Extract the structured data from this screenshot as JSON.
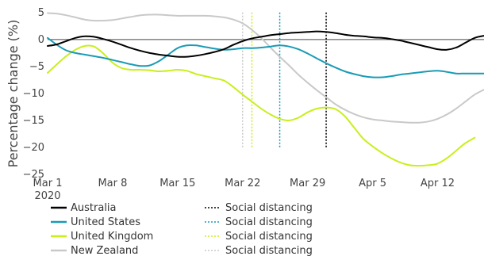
{
  "chart_data": {
    "type": "line",
    "ylabel": "Percentage change (%)",
    "ylim": [
      -25,
      6
    ],
    "xlim": [
      "2020-03-01",
      "2020-04-17"
    ],
    "x_ticks": [
      "Mar 1",
      "Mar 8",
      "Mar 15",
      "Mar 22",
      "Mar 29",
      "Apr 5",
      "Apr 12"
    ],
    "x_tick_dates": [
      "2020-03-01",
      "2020-03-08",
      "2020-03-15",
      "2020-03-22",
      "2020-03-29",
      "2020-04-05",
      "2020-04-12"
    ],
    "x_year_label": "2020",
    "y_ticks": [
      5,
      0,
      -5,
      -10,
      -15,
      -20,
      -25
    ],
    "y_tick_labels": [
      "5",
      "0",
      "−5",
      "−10",
      "−15",
      "−20",
      "−25"
    ],
    "zero_line": true,
    "legend_position": "bottom",
    "series": [
      {
        "name": "Australia",
        "color": "#000000",
        "x": [
          "2020-03-01",
          "2020-03-02",
          "2020-03-03",
          "2020-03-04",
          "2020-03-05",
          "2020-03-06",
          "2020-03-07",
          "2020-03-08",
          "2020-03-09",
          "2020-03-10",
          "2020-03-11",
          "2020-03-12",
          "2020-03-13",
          "2020-03-14",
          "2020-03-15",
          "2020-03-16",
          "2020-03-17",
          "2020-03-18",
          "2020-03-19",
          "2020-03-20",
          "2020-03-21",
          "2020-03-22",
          "2020-03-23",
          "2020-03-24",
          "2020-03-25",
          "2020-03-26",
          "2020-03-27",
          "2020-03-28",
          "2020-03-29",
          "2020-03-30",
          "2020-03-31",
          "2020-04-01",
          "2020-04-02",
          "2020-04-03",
          "2020-04-04",
          "2020-04-05",
          "2020-04-06",
          "2020-04-07",
          "2020-04-08",
          "2020-04-09",
          "2020-04-10",
          "2020-04-11",
          "2020-04-12",
          "2020-04-13",
          "2020-04-14",
          "2020-04-15",
          "2020-04-16",
          "2020-04-17"
        ],
        "values": [
          -1.2,
          -0.9,
          -0.3,
          0.3,
          0.6,
          0.5,
          0.1,
          -0.4,
          -1.0,
          -1.6,
          -2.1,
          -2.5,
          -2.8,
          -3.0,
          -3.2,
          -3.2,
          -3.0,
          -2.7,
          -2.3,
          -1.8,
          -1.0,
          -0.3,
          0.2,
          0.5,
          0.8,
          1.0,
          1.2,
          1.3,
          1.4,
          1.5,
          1.4,
          1.2,
          0.9,
          0.7,
          0.6,
          0.4,
          0.3,
          0.1,
          -0.2,
          -0.6,
          -1.0,
          -1.4,
          -1.8,
          -1.9,
          -1.5,
          -0.6,
          0.3,
          0.7
        ]
      },
      {
        "name": "United States",
        "color": "#1a9bb5",
        "x": [
          "2020-03-01",
          "2020-03-02",
          "2020-03-03",
          "2020-03-04",
          "2020-03-05",
          "2020-03-06",
          "2020-03-07",
          "2020-03-08",
          "2020-03-09",
          "2020-03-10",
          "2020-03-11",
          "2020-03-12",
          "2020-03-13",
          "2020-03-14",
          "2020-03-15",
          "2020-03-16",
          "2020-03-17",
          "2020-03-18",
          "2020-03-19",
          "2020-03-20",
          "2020-03-21",
          "2020-03-22",
          "2020-03-23",
          "2020-03-24",
          "2020-03-25",
          "2020-03-26",
          "2020-03-27",
          "2020-03-28",
          "2020-03-29",
          "2020-03-30",
          "2020-03-31",
          "2020-04-01",
          "2020-04-02",
          "2020-04-03",
          "2020-04-04",
          "2020-04-05",
          "2020-04-06",
          "2020-04-07",
          "2020-04-08",
          "2020-04-09",
          "2020-04-10",
          "2020-04-11",
          "2020-04-12",
          "2020-04-13",
          "2020-04-14",
          "2020-04-15",
          "2020-04-16",
          "2020-04-17"
        ],
        "values": [
          0.3,
          -1.0,
          -2.0,
          -2.5,
          -2.8,
          -3.1,
          -3.4,
          -3.8,
          -4.2,
          -4.6,
          -4.9,
          -4.8,
          -4.0,
          -2.8,
          -1.6,
          -1.1,
          -1.1,
          -1.4,
          -1.7,
          -1.9,
          -1.8,
          -1.6,
          -1.6,
          -1.5,
          -1.3,
          -1.1,
          -1.3,
          -1.8,
          -2.6,
          -3.5,
          -4.4,
          -5.2,
          -5.9,
          -6.4,
          -6.8,
          -7.0,
          -7.0,
          -6.8,
          -6.5,
          -6.3,
          -6.1,
          -5.9,
          -5.8,
          -6.0,
          -6.3,
          -6.3,
          -6.3,
          -6.3
        ]
      },
      {
        "name": "United Kingdom",
        "color": "#c8ef1c",
        "x": [
          "2020-03-01",
          "2020-03-02",
          "2020-03-03",
          "2020-03-04",
          "2020-03-05",
          "2020-03-06",
          "2020-03-07",
          "2020-03-08",
          "2020-03-09",
          "2020-03-10",
          "2020-03-11",
          "2020-03-12",
          "2020-03-13",
          "2020-03-14",
          "2020-03-15",
          "2020-03-16",
          "2020-03-17",
          "2020-03-18",
          "2020-03-19",
          "2020-03-20",
          "2020-03-21",
          "2020-03-22",
          "2020-03-23",
          "2020-03-24",
          "2020-03-25",
          "2020-03-26",
          "2020-03-27",
          "2020-03-28",
          "2020-03-29",
          "2020-03-30",
          "2020-03-31",
          "2020-04-01",
          "2020-04-02",
          "2020-04-03",
          "2020-04-04",
          "2020-04-05",
          "2020-04-06",
          "2020-04-07",
          "2020-04-08",
          "2020-04-09",
          "2020-04-10",
          "2020-04-11",
          "2020-04-12",
          "2020-04-13",
          "2020-04-14",
          "2020-04-15",
          "2020-04-16"
        ],
        "values": [
          -6.2,
          -4.6,
          -3.1,
          -1.9,
          -1.2,
          -1.3,
          -2.6,
          -4.3,
          -5.3,
          -5.6,
          -5.6,
          -5.7,
          -5.9,
          -5.8,
          -5.6,
          -5.8,
          -6.4,
          -6.8,
          -7.2,
          -7.6,
          -8.8,
          -10.2,
          -11.5,
          -12.8,
          -13.9,
          -14.7,
          -15.0,
          -14.5,
          -13.5,
          -12.8,
          -12.6,
          -12.9,
          -14.2,
          -16.3,
          -18.4,
          -19.8,
          -21.0,
          -22.0,
          -22.8,
          -23.3,
          -23.4,
          -23.3,
          -23.0,
          -22.0,
          -20.6,
          -19.2,
          -18.2
        ]
      },
      {
        "name": "New Zealand",
        "color": "#c9c9c9",
        "x": [
          "2020-03-01",
          "2020-03-02",
          "2020-03-03",
          "2020-03-04",
          "2020-03-05",
          "2020-03-06",
          "2020-03-07",
          "2020-03-08",
          "2020-03-09",
          "2020-03-10",
          "2020-03-11",
          "2020-03-12",
          "2020-03-13",
          "2020-03-14",
          "2020-03-15",
          "2020-03-16",
          "2020-03-17",
          "2020-03-18",
          "2020-03-19",
          "2020-03-20",
          "2020-03-21",
          "2020-03-22",
          "2020-03-23",
          "2020-03-24",
          "2020-03-25",
          "2020-03-26",
          "2020-03-27",
          "2020-03-28",
          "2020-03-29",
          "2020-03-30",
          "2020-03-31",
          "2020-04-01",
          "2020-04-02",
          "2020-04-03",
          "2020-04-04",
          "2020-04-05",
          "2020-04-06",
          "2020-04-07",
          "2020-04-08",
          "2020-04-09",
          "2020-04-10",
          "2020-04-11",
          "2020-04-12",
          "2020-04-13",
          "2020-04-14",
          "2020-04-15",
          "2020-04-16",
          "2020-04-17"
        ],
        "values": [
          4.9,
          4.8,
          4.5,
          4.1,
          3.7,
          3.5,
          3.5,
          3.6,
          3.9,
          4.2,
          4.5,
          4.6,
          4.6,
          4.5,
          4.4,
          4.4,
          4.4,
          4.4,
          4.3,
          4.1,
          3.7,
          3.0,
          1.8,
          0.3,
          -1.5,
          -3.2,
          -4.8,
          -6.5,
          -8.0,
          -9.4,
          -10.7,
          -12.0,
          -13.0,
          -13.8,
          -14.4,
          -14.8,
          -15.0,
          -15.2,
          -15.3,
          -15.4,
          -15.4,
          -15.2,
          -14.7,
          -13.9,
          -12.8,
          -11.5,
          -10.2,
          -9.3
        ]
      }
    ],
    "vlines": [
      {
        "name": "Social distancing",
        "color": "#000000",
        "x": "2020-03-31"
      },
      {
        "name": "Social distancing",
        "color": "#1a9bb5",
        "x": "2020-03-26"
      },
      {
        "name": "Social distancing",
        "color": "#c8ef1c",
        "x": "2020-03-23"
      },
      {
        "name": "Social distancing",
        "color": "#c9c9c9",
        "x": "2020-03-22"
      }
    ]
  }
}
